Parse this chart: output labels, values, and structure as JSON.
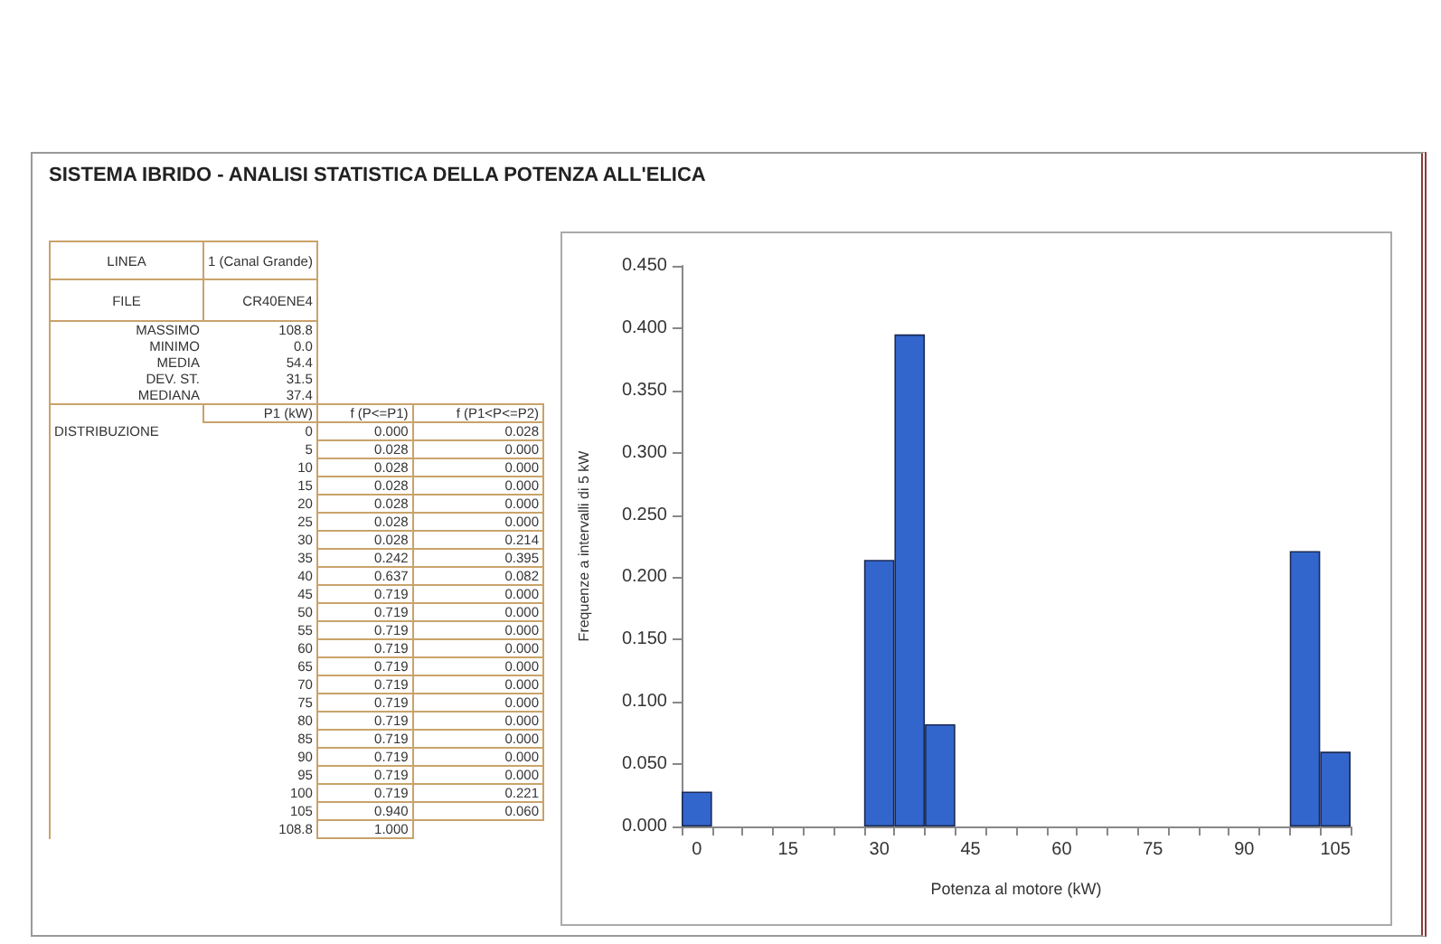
{
  "chart_data": [
    {
      "type": "other",
      "title": "SISTEMA IBRIDO - ANALISI STATISTICA DELLA POTENZA ALL'ELICA",
      "annotations": [
        "LINEA",
        "1 (Canal Grande)",
        "FILE",
        "CR40ENE4",
        "MASSIMO",
        "108.8",
        "MINIMO",
        "0.0",
        "MEDIA",
        "54.4",
        "DEV. ST.",
        "31.5",
        "MEDIANA",
        "37.4",
        "P1 (kW)",
        "f (P<=P1)",
        "f (P1<P<=P2)",
        "DISTRIBUZIONE",
        "0",
        "0.000",
        "0.028",
        "5",
        "0.028",
        "0.000",
        "10",
        "0.028",
        "0.000",
        "15",
        "0.028",
        "0.000",
        "20",
        "0.028",
        "0.000",
        "25",
        "0.028",
        "0.000",
        "30",
        "0.028",
        "0.214",
        "35",
        "0.242",
        "0.395",
        "40",
        "0.637",
        "0.082",
        "45",
        "0.719",
        "0.000",
        "50",
        "0.719",
        "0.000",
        "55",
        "0.719",
        "0.000",
        "60",
        "0.719",
        "0.000",
        "65",
        "0.719",
        "0.000",
        "70",
        "0.719",
        "0.000",
        "75",
        "0.719",
        "0.000",
        "80",
        "0.719",
        "0.000",
        "85",
        "0.719",
        "0.000",
        "90",
        "0.719",
        "0.000",
        "95",
        "0.719",
        "0.000",
        "100",
        "0.719",
        "0.221",
        "105",
        "0.940",
        "0.060",
        "108.8",
        "1.000"
      ]
    },
    {
      "type": "bar",
      "xlabel": "Potenza al motore (kW)",
      "ylabel": "Frequenze a intervalli di 5 kW",
      "categories": [
        "0",
        null,
        null,
        "15",
        null,
        null,
        "30",
        null,
        null,
        "45",
        null,
        null,
        "60",
        null,
        null,
        "75",
        null,
        null,
        "90",
        null,
        null,
        "105"
      ],
      "values": [
        0.028,
        0,
        0,
        0,
        0,
        0,
        0.214,
        0.395,
        0.082,
        0,
        0,
        0,
        0,
        0,
        0,
        0,
        0,
        0,
        0,
        0,
        0.221,
        0.06
      ],
      "color": "#3366cc",
      "ylim": [
        0,
        0.45
      ],
      "yticks": [
        {
          "value": 0,
          "label": "0.000"
        },
        {
          "value": 0.05,
          "label": "0.050"
        },
        {
          "value": 0.1,
          "label": "0.100"
        },
        {
          "value": 0.15,
          "label": "0.150"
        },
        {
          "value": 0.2,
          "label": "0.200"
        },
        {
          "value": 0.25,
          "label": "0.250"
        },
        {
          "value": 0.3,
          "label": "0.300"
        },
        {
          "value": 0.35,
          "label": "0.350"
        },
        {
          "value": 0.4,
          "label": "0.400"
        },
        {
          "value": 0.45,
          "label": "0.450"
        }
      ],
      "grid": false
    }
  ]
}
